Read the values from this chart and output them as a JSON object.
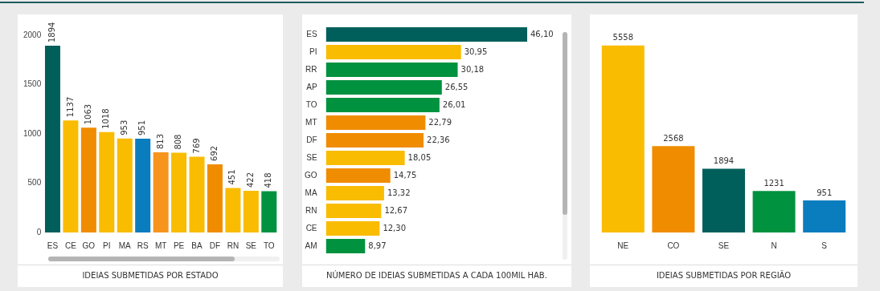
{
  "chart_data": [
    {
      "type": "bar",
      "title": "IDEIAS SUBMETIDAS POR ESTADO",
      "categories": [
        "ES",
        "CE",
        "GO",
        "PI",
        "MA",
        "RS",
        "MT",
        "PE",
        "BA",
        "DF",
        "RN",
        "SE",
        "TO"
      ],
      "values": [
        1894,
        1137,
        1063,
        1018,
        953,
        951,
        813,
        808,
        769,
        692,
        451,
        422,
        418
      ],
      "colors": [
        "#005f5a",
        "#f9bc00",
        "#f08c00",
        "#f9bc00",
        "#f9bc00",
        "#0a7dbf",
        "#f7941d",
        "#f9bc00",
        "#f9bc00",
        "#f08c00",
        "#f9bc00",
        "#f9bc00",
        "#00923f"
      ],
      "ylim": [
        0,
        2000
      ],
      "yticks": [
        0,
        500,
        1000,
        1500,
        2000
      ],
      "data_labels": true
    },
    {
      "type": "bar",
      "orientation": "horizontal",
      "title": "NÚMERO DE IDEIAS SUBMETIDAS A CADA 100MIL HAB.",
      "categories": [
        "ES",
        "PI",
        "RR",
        "AP",
        "TO",
        "MT",
        "DF",
        "SE",
        "GO",
        "MA",
        "RN",
        "CE",
        "AM"
      ],
      "values": [
        46.1,
        30.95,
        30.18,
        26.55,
        26.01,
        22.79,
        22.36,
        18.05,
        14.75,
        13.32,
        12.67,
        12.3,
        8.97
      ],
      "value_labels": [
        "46,10",
        "30,95",
        "30,18",
        "26,55",
        "26,01",
        "22,79",
        "22,36",
        "18,05",
        "14,75",
        "13,32",
        "12,67",
        "12,30",
        "8,97"
      ],
      "colors": [
        "#005f5a",
        "#f9bc00",
        "#00923f",
        "#00923f",
        "#00923f",
        "#f08c00",
        "#f08c00",
        "#f9bc00",
        "#f08c00",
        "#f9bc00",
        "#f9bc00",
        "#f9bc00",
        "#00923f"
      ],
      "tick_labels": "y"
    },
    {
      "type": "bar",
      "title": "IDEIAS SUBMETIDAS POR REGIÃO",
      "categories": [
        "NE",
        "CO",
        "SE",
        "N",
        "S"
      ],
      "values": [
        5558,
        2568,
        1894,
        1231,
        951
      ],
      "colors": [
        "#f9bc00",
        "#f08c00",
        "#005f5a",
        "#00923f",
        "#0a7dbf"
      ],
      "data_labels": true,
      "tick_labels": "x"
    }
  ]
}
